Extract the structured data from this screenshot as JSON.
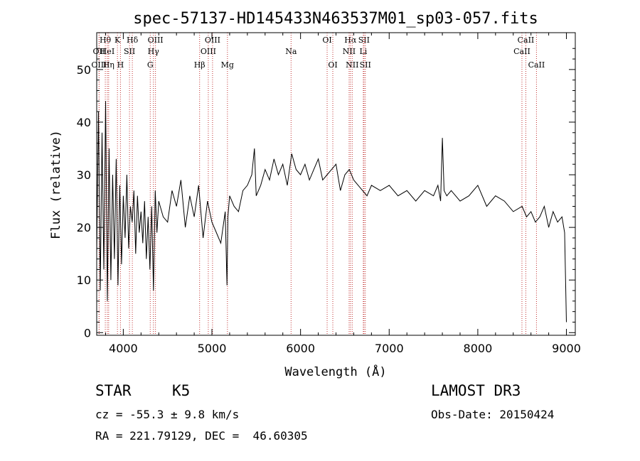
{
  "chart_data": {
    "type": "line",
    "title": "spec-57137-HD145433N463537M01_sp03-057.fits",
    "xlabel": "Wavelength (Å)",
    "ylabel": "Flux (relative)",
    "xlim": [
      3700,
      9100
    ],
    "ylim": [
      -0.5,
      57
    ],
    "xticks": [
      4000,
      5000,
      6000,
      7000,
      8000,
      9000
    ],
    "yticks": [
      0,
      10,
      20,
      30,
      40,
      50
    ],
    "series": [
      {
        "name": "spectrum",
        "x": [
          3700,
          3720,
          3740,
          3760,
          3780,
          3800,
          3820,
          3840,
          3860,
          3880,
          3900,
          3920,
          3940,
          3960,
          3980,
          4000,
          4020,
          4040,
          4060,
          4080,
          4100,
          4120,
          4140,
          4160,
          4180,
          4200,
          4220,
          4240,
          4260,
          4280,
          4300,
          4320,
          4340,
          4360,
          4380,
          4400,
          4450,
          4500,
          4550,
          4600,
          4650,
          4700,
          4750,
          4800,
          4850,
          4900,
          4950,
          5000,
          5050,
          5100,
          5150,
          5170,
          5180,
          5200,
          5250,
          5300,
          5350,
          5400,
          5450,
          5480,
          5500,
          5550,
          5600,
          5650,
          5700,
          5750,
          5800,
          5850,
          5900,
          5950,
          6000,
          6050,
          6100,
          6150,
          6200,
          6250,
          6300,
          6350,
          6400,
          6450,
          6500,
          6550,
          6600,
          6650,
          6700,
          6750,
          6800,
          6900,
          7000,
          7100,
          7200,
          7300,
          7400,
          7500,
          7550,
          7580,
          7600,
          7620,
          7650,
          7700,
          7800,
          7900,
          8000,
          8100,
          8200,
          8300,
          8400,
          8500,
          8550,
          8600,
          8650,
          8700,
          8750,
          8800,
          8850,
          8900,
          8950,
          8980,
          9000
        ],
        "y": [
          15,
          42,
          8,
          38,
          12,
          44,
          6,
          35,
          10,
          30,
          14,
          33,
          9,
          28,
          13,
          26,
          18,
          30,
          16,
          24,
          21,
          27,
          15,
          26,
          19,
          23,
          17,
          25,
          14,
          22,
          12,
          24,
          8,
          27,
          19,
          25,
          22,
          21,
          27,
          24,
          29,
          20,
          26,
          22,
          28,
          18,
          25,
          21,
          19,
          17,
          23,
          9,
          22,
          26,
          24,
          23,
          27,
          28,
          30,
          35,
          26,
          28,
          31,
          29,
          33,
          30,
          32,
          28,
          34,
          31,
          30,
          32,
          29,
          31,
          33,
          29,
          30,
          31,
          32,
          27,
          30,
          31,
          29,
          28,
          27,
          26,
          28,
          27,
          28,
          26,
          27,
          25,
          27,
          26,
          28,
          25,
          37,
          27,
          26,
          27,
          25,
          26,
          28,
          24,
          26,
          25,
          23,
          24,
          22,
          23,
          21,
          22,
          24,
          20,
          23,
          21,
          22,
          19,
          2
        ]
      }
    ],
    "spectral_lines": [
      {
        "label": "OII",
        "x": 3727,
        "row": 1
      },
      {
        "label": "OIII",
        "x": 3727,
        "row": 2
      },
      {
        "label": "Hθ",
        "x": 3797,
        "row": 0
      },
      {
        "label": "HeI",
        "x": 3820,
        "row": 1
      },
      {
        "label": "Hη",
        "x": 3835,
        "row": 2
      },
      {
        "label": "K",
        "x": 3934,
        "row": 0
      },
      {
        "label": "SII",
        "x": 4070,
        "row": 1
      },
      {
        "label": "H",
        "x": 3968,
        "row": 2
      },
      {
        "label": "Hδ",
        "x": 4102,
        "row": 0
      },
      {
        "label": "OIII",
        "x": 4363,
        "row": 0
      },
      {
        "label": "Hγ",
        "x": 4340,
        "row": 1
      },
      {
        "label": "G",
        "x": 4304,
        "row": 2
      },
      {
        "label": "Hβ",
        "x": 4861,
        "row": 2
      },
      {
        "label": "OIII",
        "x": 4959,
        "row": 1
      },
      {
        "label": "OIII",
        "x": 5007,
        "row": 0
      },
      {
        "label": "Mg",
        "x": 5175,
        "row": 2
      },
      {
        "label": "Na",
        "x": 5893,
        "row": 1
      },
      {
        "label": "OI",
        "x": 6300,
        "row": 0
      },
      {
        "label": "OI",
        "x": 6364,
        "row": 2
      },
      {
        "label": "Hα",
        "x": 6563,
        "row": 0
      },
      {
        "label": "NII",
        "x": 6548,
        "row": 1
      },
      {
        "label": "NII",
        "x": 6583,
        "row": 2
      },
      {
        "label": "SII",
        "x": 6716,
        "row": 0
      },
      {
        "label": "Li",
        "x": 6708,
        "row": 1
      },
      {
        "label": "SII",
        "x": 6731,
        "row": 2
      },
      {
        "label": "CaII",
        "x": 8542,
        "row": 0
      },
      {
        "label": "CaII",
        "x": 8498,
        "row": 1
      },
      {
        "label": "CaII",
        "x": 8662,
        "row": 2
      }
    ]
  },
  "info": {
    "class": "STAR",
    "subclass": "K5",
    "survey": "LAMOST DR3",
    "velocity": "cz = -55.3 ± 9.8 km/s",
    "obs_date": "Obs-Date: 20150424",
    "coords": "RA = 221.79129, DEC =  46.60305"
  }
}
